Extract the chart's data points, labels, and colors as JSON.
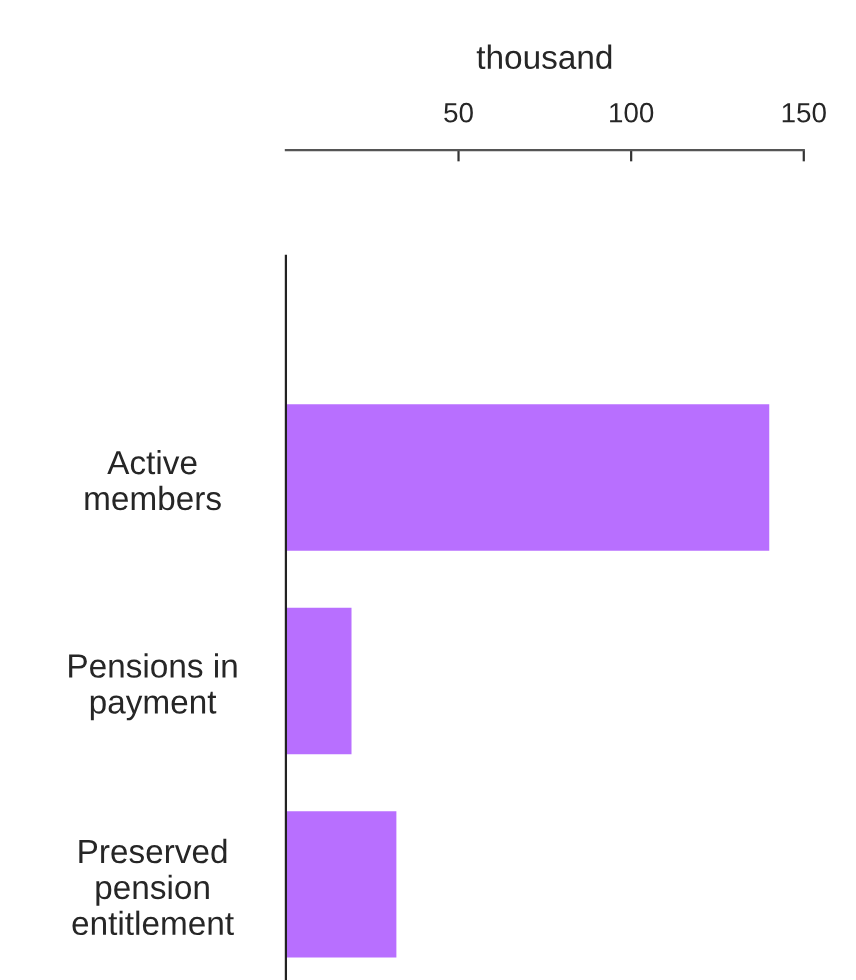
{
  "chart_data": {
    "type": "bar",
    "orientation": "horizontal",
    "x2label": "thousand",
    "categories": [
      "Active\nmembers",
      "Pensions in\npayment",
      "Preserved\npension\nentitlement"
    ],
    "series": [
      {
        "values": [
          140,
          19,
          32
        ],
        "color": "#b86fff",
        "axis": "x2"
      }
    ],
    "x2lim": [
      0,
      150
    ],
    "x2ticks": [
      50,
      100,
      150
    ],
    "grid": false,
    "legend": false
  }
}
